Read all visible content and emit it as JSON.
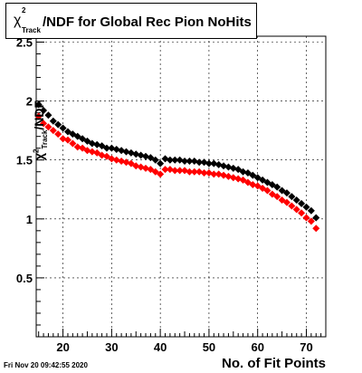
{
  "title": {
    "chi": "χ",
    "sup": "2",
    "sub": "Track",
    "main": "/NDF for Global Rec Pion NoHits"
  },
  "y_axis_label": {
    "chi": "χ",
    "sup": "2",
    "sub": "Track",
    "main": "/NDF"
  },
  "x_axis_label": "No. of Fit Points",
  "timestamp": "Fri Nov 20 09:42:55 2020",
  "colors": {
    "series_black": "#000000",
    "series_red": "#ff0000"
  },
  "chart_data": {
    "type": "scatter",
    "xlim": [
      14.5,
      74
    ],
    "ylim": [
      0,
      2.55
    ],
    "x_ticks": [
      20,
      30,
      40,
      50,
      60,
      70
    ],
    "y_ticks": [
      0.5,
      1,
      1.5,
      2,
      2.5
    ],
    "y_tick_labels": [
      "0.5",
      "1",
      "1.5",
      "2",
      "2.5"
    ],
    "grid": true,
    "x": [
      15,
      16,
      17,
      18,
      19,
      20,
      21,
      22,
      23,
      24,
      25,
      26,
      27,
      28,
      29,
      30,
      31,
      32,
      33,
      34,
      35,
      36,
      37,
      38,
      39,
      40,
      41,
      42,
      43,
      44,
      45,
      46,
      47,
      48,
      49,
      50,
      51,
      52,
      53,
      54,
      55,
      56,
      57,
      58,
      59,
      60,
      61,
      62,
      63,
      64,
      65,
      66,
      67,
      68,
      69,
      70,
      71,
      72
    ],
    "series": [
      {
        "color": "#000000",
        "values": [
          1.97,
          1.92,
          1.88,
          1.83,
          1.8,
          1.77,
          1.74,
          1.72,
          1.7,
          1.68,
          1.66,
          1.64,
          1.63,
          1.62,
          1.6,
          1.6,
          1.59,
          1.58,
          1.57,
          1.56,
          1.55,
          1.54,
          1.53,
          1.52,
          1.5,
          1.47,
          1.51,
          1.5,
          1.5,
          1.5,
          1.49,
          1.49,
          1.49,
          1.48,
          1.48,
          1.47,
          1.47,
          1.46,
          1.45,
          1.44,
          1.43,
          1.42,
          1.4,
          1.39,
          1.37,
          1.35,
          1.33,
          1.31,
          1.29,
          1.27,
          1.24,
          1.22,
          1.19,
          1.16,
          1.13,
          1.1,
          1.07,
          1.01
        ]
      },
      {
        "color": "#ff0000",
        "values": [
          1.87,
          1.81,
          1.78,
          1.75,
          1.72,
          1.68,
          1.67,
          1.64,
          1.61,
          1.6,
          1.58,
          1.57,
          1.56,
          1.54,
          1.53,
          1.51,
          1.5,
          1.49,
          1.48,
          1.47,
          1.45,
          1.44,
          1.43,
          1.42,
          1.4,
          1.38,
          1.42,
          1.42,
          1.41,
          1.41,
          1.41,
          1.4,
          1.4,
          1.4,
          1.39,
          1.39,
          1.38,
          1.38,
          1.37,
          1.36,
          1.35,
          1.34,
          1.33,
          1.31,
          1.29,
          1.28,
          1.26,
          1.24,
          1.21,
          1.19,
          1.16,
          1.14,
          1.11,
          1.08,
          1.05,
          1.01,
          0.98,
          0.92
        ]
      }
    ]
  }
}
